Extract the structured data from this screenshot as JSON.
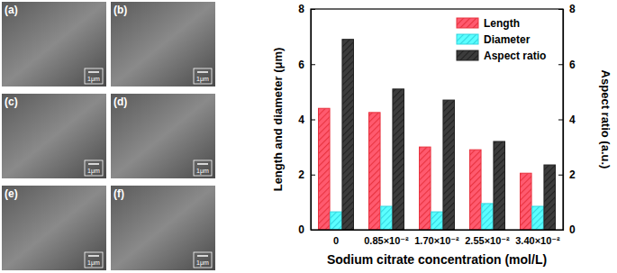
{
  "images": [
    {
      "label": "(a)",
      "scale_bar": "1μm"
    },
    {
      "label": "(b)",
      "scale_bar": "1μm"
    },
    {
      "label": "(c)",
      "scale_bar": "1μm"
    },
    {
      "label": "(d)",
      "scale_bar": "1μm"
    },
    {
      "label": "(e)",
      "scale_bar": "1μm"
    },
    {
      "label": "(f)",
      "scale_bar": "1μm"
    }
  ],
  "chart_data": {
    "type": "bar",
    "x_label": "Sodium citrate concentration (mol/L)",
    "y_label": "Length and diameter (μm)",
    "y2_label": "Aspect ratio (a.u.)",
    "categories": [
      "0",
      "0.85×10⁻²",
      "1.70×10⁻²",
      "2.55×10⁻²",
      "3.40×10⁻²"
    ],
    "series": [
      {
        "name": "Length",
        "color": "#e8333f",
        "values": [
          4.4,
          4.25,
          3.0,
          2.9,
          2.05
        ]
      },
      {
        "name": "Diameter",
        "color": "#33d6e0",
        "values": [
          0.65,
          0.85,
          0.65,
          0.95,
          0.85
        ]
      },
      {
        "name": "Aspect ratio",
        "color": "#222222",
        "axis": "y2",
        "values": [
          6.9,
          5.1,
          4.7,
          3.2,
          2.35
        ]
      }
    ],
    "ylim": [
      0,
      8
    ],
    "yticks": [
      0,
      2,
      4,
      6,
      8
    ],
    "y2lim": [
      0,
      8
    ],
    "y2ticks": [
      0,
      2,
      4,
      6,
      8
    ],
    "legend": "upper right"
  }
}
